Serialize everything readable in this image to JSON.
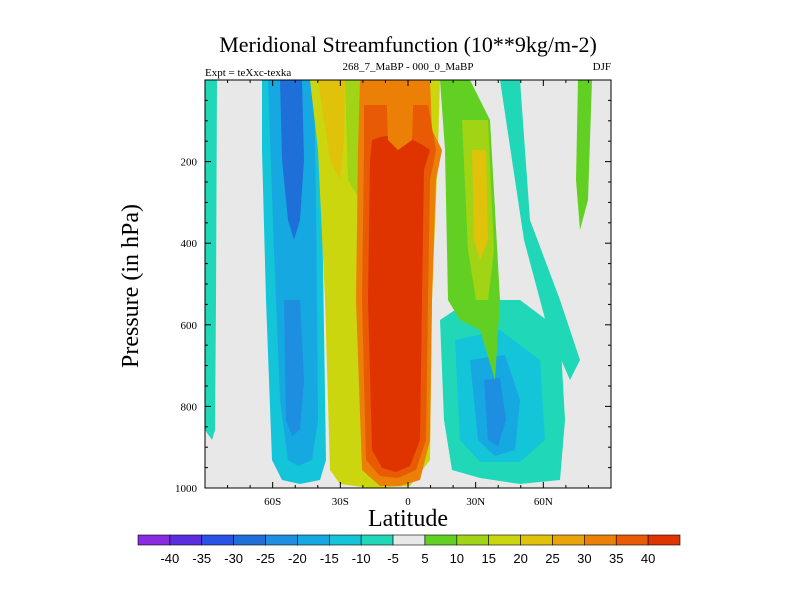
{
  "chart_data": {
    "type": "contour",
    "title": "Meridional Streamfunction (10**9kg/m-2)",
    "left_subtitle": "Expt = teXxc-texka",
    "center_subtitle": "268_7_MaBP - 000_0_MaBP",
    "right_subtitle": "DJF",
    "xlabel": "Latitude",
    "ylabel": "Pressure (in hPa)",
    "xlim": [
      -90,
      90
    ],
    "ylim": [
      1000,
      0
    ],
    "x_ticks": [
      {
        "value": -60,
        "label": "60S"
      },
      {
        "value": -30,
        "label": "30S"
      },
      {
        "value": 0,
        "label": "0"
      },
      {
        "value": 30,
        "label": "30N"
      },
      {
        "value": 60,
        "label": "60N"
      }
    ],
    "y_ticks": [
      200,
      400,
      600,
      800,
      1000
    ],
    "colorbar": {
      "labels": [
        "-40",
        "-35",
        "-30",
        "-25",
        "-20",
        "-15",
        "-10",
        "-5",
        "5",
        "10",
        "15",
        "20",
        "25",
        "30",
        "35",
        "40"
      ],
      "colors": [
        "#8a2be2",
        "#5a2ee0",
        "#2b52e6",
        "#1f6fd9",
        "#1d8ee0",
        "#16a8e0",
        "#14c4d8",
        "#20d8b8",
        "#e8e8e8",
        "#62d022",
        "#a0d414",
        "#ccd60e",
        "#e0c20a",
        "#e8a408",
        "#ec8006",
        "#e85a04",
        "#e03400"
      ]
    },
    "features": [
      {
        "name": "central positive cell",
        "lat_range": [
          -12,
          12
        ],
        "pressure_range": [
          130,
          970
        ],
        "peak": 40
      },
      {
        "name": "southern negative cell",
        "lat_range": [
          -65,
          -25
        ],
        "pressure_range": [
          0,
          990
        ],
        "peak": -30
      },
      {
        "name": "northern negative cell",
        "lat_range": [
          20,
          60
        ],
        "pressure_range": [
          300,
          990
        ],
        "peak": -25
      },
      {
        "name": "upper positive plume",
        "lat_range": [
          28,
          38
        ],
        "pressure_range": [
          150,
          550
        ],
        "peak": 30
      }
    ]
  }
}
